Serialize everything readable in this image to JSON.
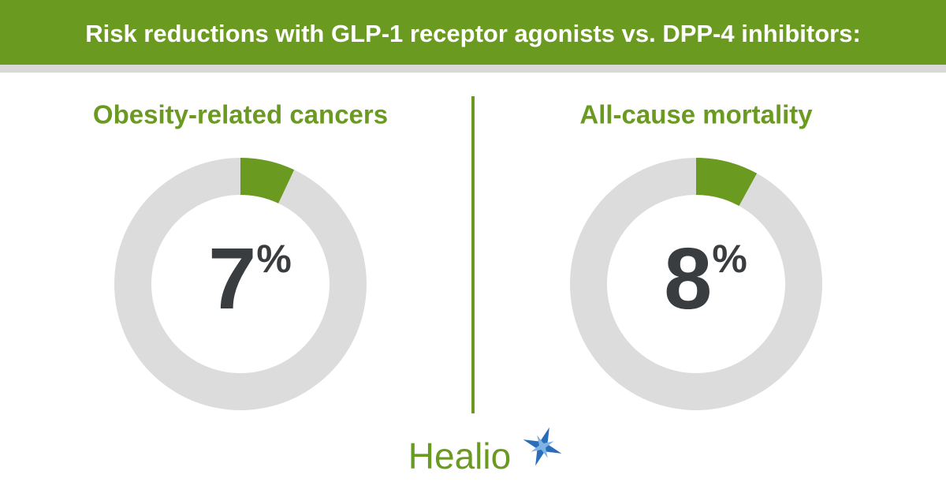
{
  "title": "Risk reductions with GLP-1 receptor agonists vs. DPP-4 inhibitors:",
  "chart_data": [
    {
      "type": "donut",
      "title": "Obesity-related cancers",
      "values": [
        7
      ],
      "value_labels": [
        "7%"
      ],
      "color": "#6a9a1f",
      "ylim": [
        0,
        100
      ]
    },
    {
      "type": "donut",
      "title": "All-cause mortality",
      "values": [
        8
      ],
      "value_labels": [
        "8%"
      ],
      "color": "#6a9a1f",
      "ylim": [
        0,
        100
      ]
    }
  ],
  "logo": "Healio"
}
